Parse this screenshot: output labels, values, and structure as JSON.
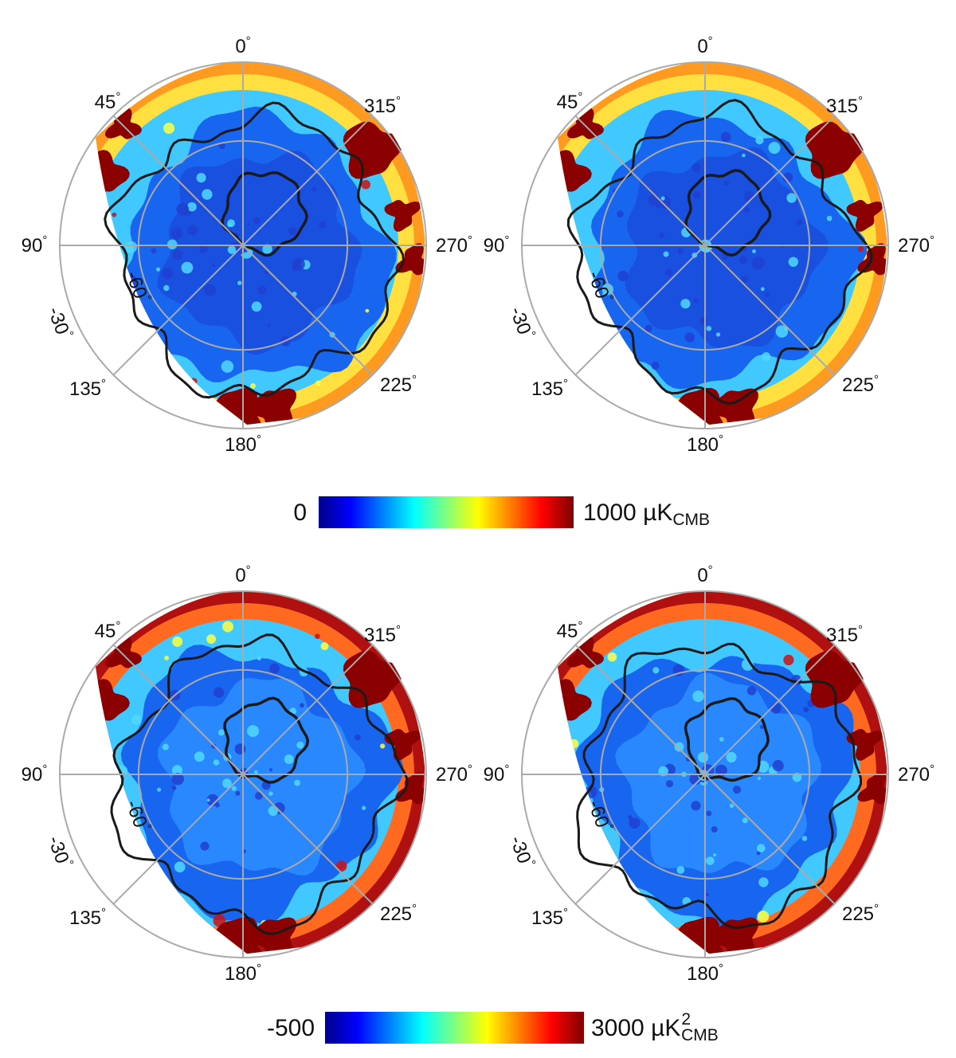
{
  "chart_data": {
    "type": "heatmap",
    "projection": "orthographic polar view",
    "longitude_ticks": [
      "0",
      "45",
      "90",
      "135",
      "180",
      "225",
      "270",
      "315"
    ],
    "latitude_ticks": [
      "-30",
      "-60"
    ],
    "degree_symbol": "°",
    "rows": [
      {
        "colorbar": {
          "min_label": "0",
          "max_label": "1000 µK",
          "unit_sub": "CMB",
          "unit_sup": "",
          "range": [
            0,
            1000
          ]
        },
        "panels": [
          {
            "variant": "a"
          },
          {
            "variant": "b"
          }
        ]
      },
      {
        "colorbar": {
          "min_label": "-500",
          "max_label": "3000 µK",
          "unit_sub": "CMB",
          "unit_sup": "2",
          "range": [
            -500,
            3000
          ]
        },
        "panels": [
          {
            "variant": "c"
          },
          {
            "variant": "d"
          }
        ]
      }
    ],
    "colormap": [
      "#00008b",
      "#0000ff",
      "#0080ff",
      "#00ffff",
      "#80ff80",
      "#ffff00",
      "#ff8000",
      "#ff0000",
      "#800000"
    ],
    "contour_color": "#1a1a1a",
    "grid_color": "#aaaaaa"
  }
}
